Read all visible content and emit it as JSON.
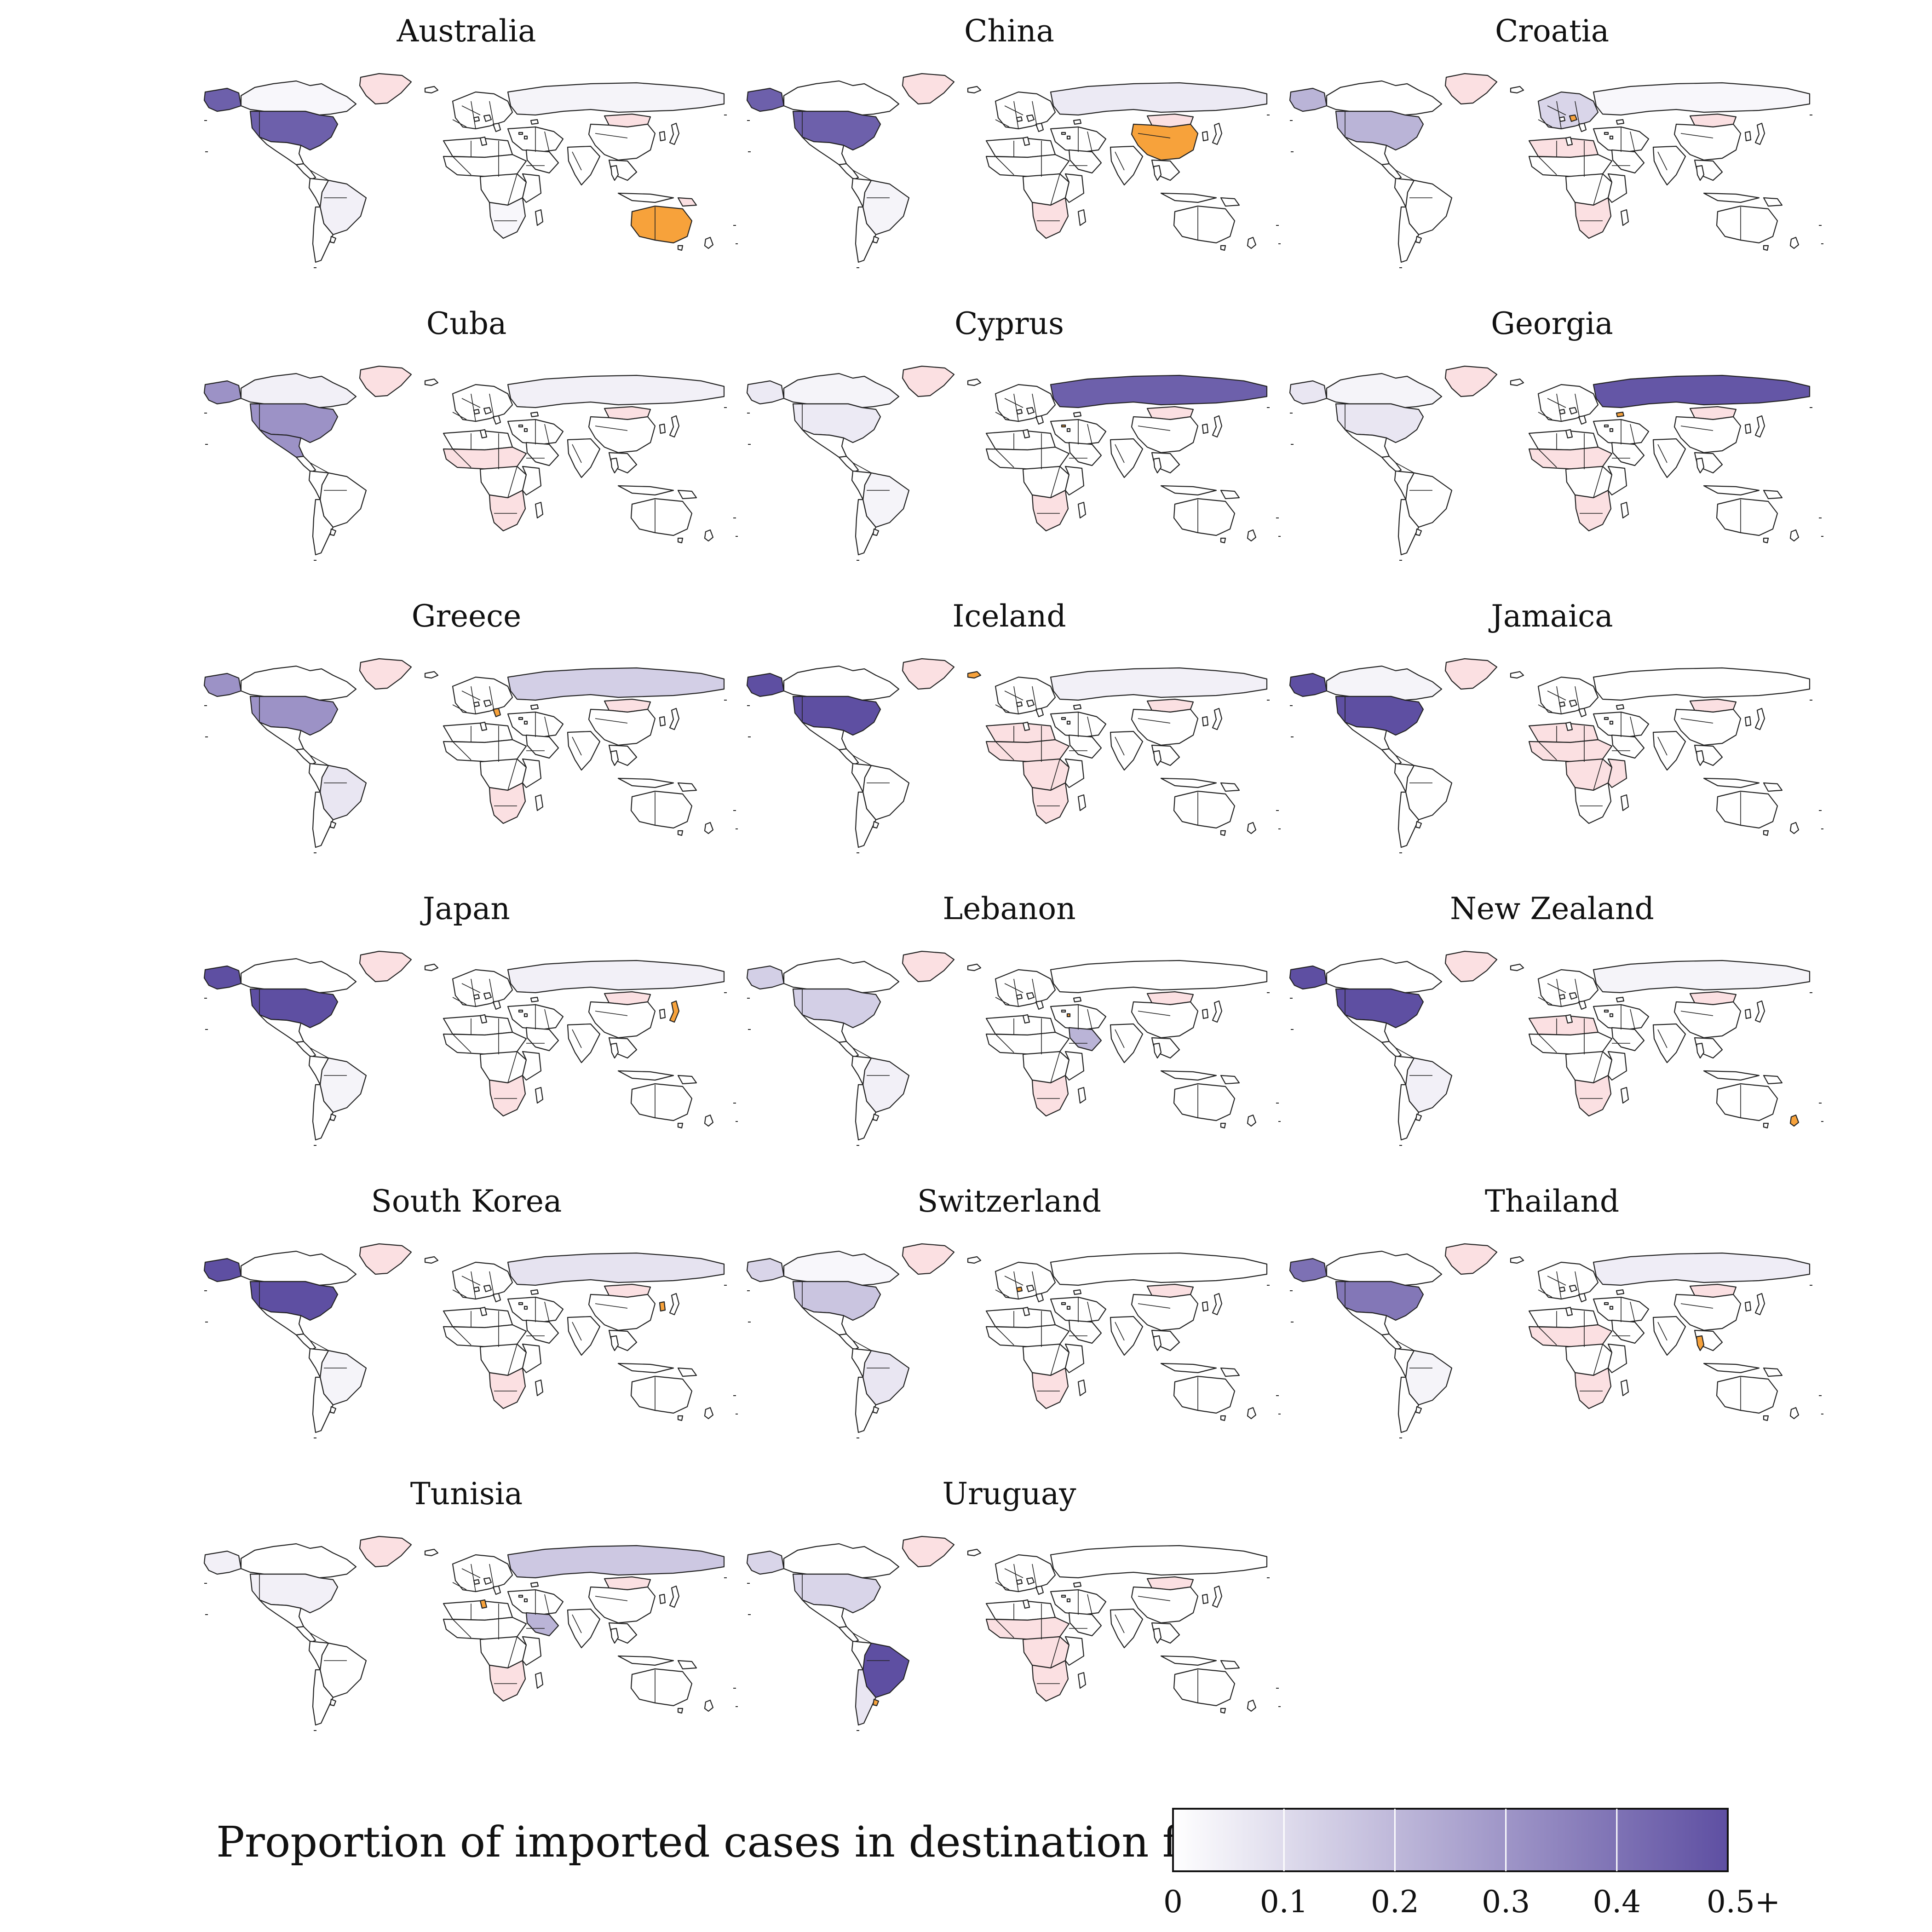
{
  "colors": {
    "scale_low": "#ffffff",
    "scale_high": "#5e4fa2",
    "origin": "#f7a23b",
    "negative_pink": "#fbe0e2",
    "border": "#222222"
  },
  "legend": {
    "title": "Proportion of imported cases in destination from origin",
    "ticks": [
      "0",
      "0.1",
      "0.2",
      "0.3",
      "0.4",
      "0.5+"
    ],
    "tick_values": [
      0,
      0.1,
      0.2,
      0.3,
      0.4,
      0.5
    ],
    "domain": [
      0,
      0.5
    ]
  },
  "panels": [
    {
      "title": "Australia",
      "origin": "australia",
      "shares": {
        "usa": 0.45,
        "alaska": 0.45,
        "canada": 0.0,
        "russia": 0.01,
        "brazil": 0.02,
        "southafrica": 0.0
      },
      "pink": [
        "greenland",
        "mongolia",
        "southafrica",
        "png"
      ]
    },
    {
      "title": "China",
      "origin": "china",
      "shares": {
        "usa": 0.45,
        "alaska": 0.45,
        "russia": 0.04,
        "brazil": 0.01
      },
      "pink": [
        "greenland",
        "mongolia",
        "southafrica"
      ]
    },
    {
      "title": "Croatia",
      "origin": "croatia",
      "shares": {
        "usa": 0.2,
        "alaska": 0.2,
        "russia": 0.0,
        "europe": 0.1
      },
      "pink": [
        "greenland",
        "mongolia",
        "southafrica",
        "maghreb"
      ]
    },
    {
      "title": "Cuba",
      "origin": "cuba",
      "shares": {
        "usa": 0.3,
        "mexico": 0.3,
        "alaska": 0.3,
        "canada": 0.02,
        "russia": 0.02
      },
      "pink": [
        "greenland",
        "mongolia",
        "southafrica",
        "sahel"
      ]
    },
    {
      "title": "Cyprus",
      "origin": "cyprus",
      "shares": {
        "russia": 0.45,
        "usa": 0.04,
        "alaska": 0.04,
        "canada": 0.01,
        "brazil": 0.01
      },
      "pink": [
        "greenland",
        "mongolia",
        "southafrica"
      ]
    },
    {
      "title": "Georgia",
      "origin": "georgia",
      "shares": {
        "russia": 0.48,
        "usa": 0.05,
        "alaska": 0.05,
        "canada": 0.01
      },
      "pink": [
        "greenland",
        "mongolia",
        "southafrica",
        "sahel"
      ]
    },
    {
      "title": "Greece",
      "origin": "greece",
      "shares": {
        "usa": 0.3,
        "alaska": 0.3,
        "russia": 0.12,
        "brazil": 0.05
      },
      "pink": [
        "greenland",
        "mongolia",
        "southafrica"
      ]
    },
    {
      "title": "Iceland",
      "origin": "iceland",
      "shares": {
        "usa": 0.5,
        "alaska": 0.5,
        "russia": 0.02
      },
      "pink": [
        "greenland",
        "mongolia",
        "southafrica",
        "sahel",
        "maghreb",
        "centralafrica"
      ]
    },
    {
      "title": "Jamaica",
      "origin": "jamaica",
      "shares": {
        "usa": 0.5,
        "alaska": 0.5,
        "canada": 0.01
      },
      "pink": [
        "greenland",
        "mongolia",
        "sahel",
        "maghreb",
        "centralafrica",
        "eastafrica"
      ]
    },
    {
      "title": "Japan",
      "origin": "japan",
      "shares": {
        "usa": 0.5,
        "alaska": 0.5,
        "russia": 0.02,
        "brazil": 0.01
      },
      "pink": [
        "greenland",
        "mongolia",
        "southafrica"
      ]
    },
    {
      "title": "Lebanon",
      "origin": "lebanon",
      "shares": {
        "usa": 0.12,
        "alaska": 0.12,
        "saudi": 0.2,
        "brazil": 0.02
      },
      "pink": [
        "greenland",
        "mongolia",
        "southafrica"
      ]
    },
    {
      "title": "New Zealand",
      "origin": "newzealand",
      "shares": {
        "usa": 0.5,
        "alaska": 0.5,
        "brazil": 0.02,
        "russia": 0.01
      },
      "pink": [
        "greenland",
        "mongolia",
        "southafrica",
        "maghreb"
      ]
    },
    {
      "title": "South Korea",
      "origin": "korea",
      "shares": {
        "usa": 0.5,
        "alaska": 0.5,
        "russia": 0.06,
        "brazil": 0.01
      },
      "pink": [
        "greenland",
        "mongolia",
        "southafrica"
      ]
    },
    {
      "title": "Switzerland",
      "origin": "switzerland",
      "shares": {
        "usa": 0.15,
        "alaska": 0.1,
        "brazil": 0.05,
        "canada": 0.0
      },
      "pink": [
        "greenland",
        "mongolia",
        "southafrica"
      ]
    },
    {
      "title": "Thailand",
      "origin": "thailand",
      "shares": {
        "usa": 0.38,
        "alaska": 0.4,
        "russia": 0.03,
        "brazil": 0.01
      },
      "pink": [
        "greenland",
        "mongolia",
        "southafrica",
        "sahel"
      ]
    },
    {
      "title": "Tunisia",
      "origin": "tunisia",
      "shares": {
        "russia": 0.14,
        "saudi": 0.2,
        "usa": 0.02,
        "alaska": 0.02
      },
      "pink": [
        "greenland",
        "mongolia",
        "southafrica"
      ]
    },
    {
      "title": "Uruguay",
      "origin": "uruguay",
      "shares": {
        "brazil": 0.5,
        "usa": 0.1,
        "alaska": 0.1,
        "argentina": 0.05
      },
      "pink": [
        "greenland",
        "mongolia",
        "southafrica",
        "sahel",
        "centralafrica"
      ]
    }
  ]
}
